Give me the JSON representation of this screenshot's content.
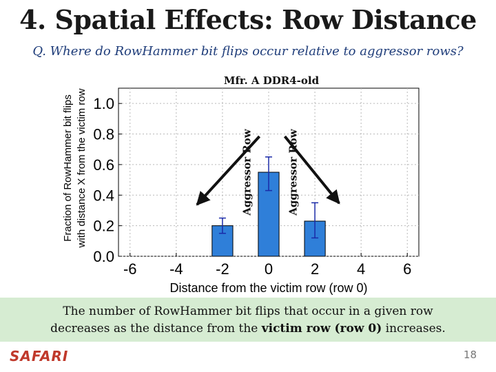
{
  "slide": {
    "title": "4. Spatial Effects: Row Distance",
    "question": "Q. Where do RowHammer bit flips occur relative to aggressor rows?",
    "callout": {
      "part1": "The number of RowHammer bit flips that occur in a given row",
      "part2": "decreases as the distance from the ",
      "emphasis": "victim row (row 0)",
      "part3": " increases."
    },
    "logo": "SAFARI",
    "page_number": "18"
  },
  "chart_data": {
    "type": "bar",
    "title": "Mfr. A  DDR4-old",
    "xlabel": "Distance from the victim row (row 0)",
    "ylabel_lines": [
      "Fraction of RowHammer bit flips",
      "with distance X from the victim row"
    ],
    "x_ticks": [
      "-6",
      "-4",
      "-2",
      "0",
      "2",
      "4",
      "6"
    ],
    "y_ticks": [
      "0.0",
      "0.2",
      "0.4",
      "0.6",
      "0.8",
      "1.0"
    ],
    "xlim": [
      -6.5,
      6.5
    ],
    "ylim": [
      0,
      1.0
    ],
    "grid": true,
    "bars": [
      {
        "x": -2,
        "value": 0.2,
        "err_low": 0.15,
        "err_high": 0.25
      },
      {
        "x": 0,
        "value": 0.55,
        "err_low": 0.43,
        "err_high": 0.65
      },
      {
        "x": 2,
        "value": 0.23,
        "err_low": 0.12,
        "err_high": 0.35
      }
    ],
    "annotations": [
      {
        "text": "Aggressor Row",
        "x": -1
      },
      {
        "text": "Aggressor Row",
        "x": 1
      }
    ],
    "bar_color": "#2f7fd9",
    "error_color": "#1a2aa8",
    "arrow_color": "#111111"
  }
}
